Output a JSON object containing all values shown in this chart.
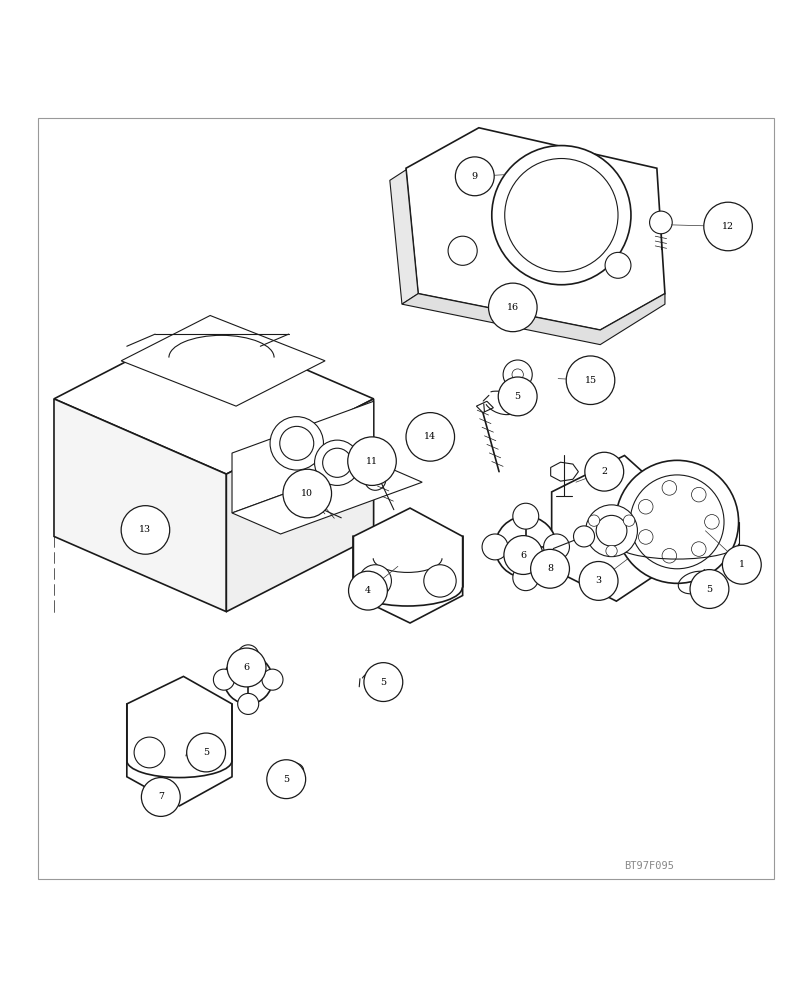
{
  "bg_color": "#ffffff",
  "line_color": "#1a1a1a",
  "fig_width": 8.12,
  "fig_height": 10.0,
  "dpi": 100,
  "watermark": "BT97F095",
  "lw_main": 1.2,
  "lw_thin": 0.8,
  "lw_fine": 0.5
}
